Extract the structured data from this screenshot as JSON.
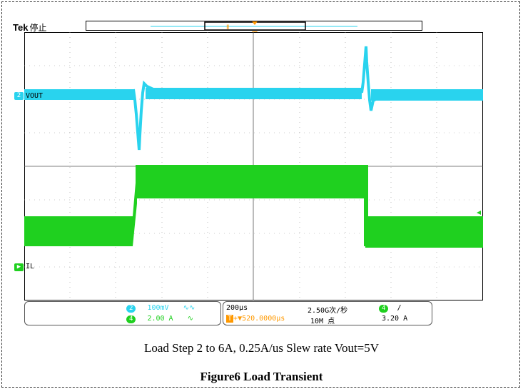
{
  "scope": {
    "brand": "Tek",
    "run_state": "停止",
    "trigger_marker": "T",
    "channels": [
      {
        "id": "2",
        "name": "VOUT",
        "color": "#29d3ee",
        "scale": "100mV",
        "coupling": "∿∿"
      },
      {
        "id": "4",
        "name": "IL",
        "color": "#1fd01f",
        "scale": "2.00 A",
        "coupling": "∿"
      }
    ],
    "timebase": "200μs",
    "trigger_position": "▼520.0000μs",
    "sample_rate": "2.50G次/秒",
    "record_length": "10M 点",
    "trigger_source": "4",
    "trigger_slope": "/",
    "trigger_level": "3.20 A",
    "trigger_color": "#ff9900"
  },
  "caption": {
    "subtitle": "Load Step 2 to 6A, 0.25A/us Slew rate Vout=5V",
    "title": "Figure6 Load Transient"
  }
}
